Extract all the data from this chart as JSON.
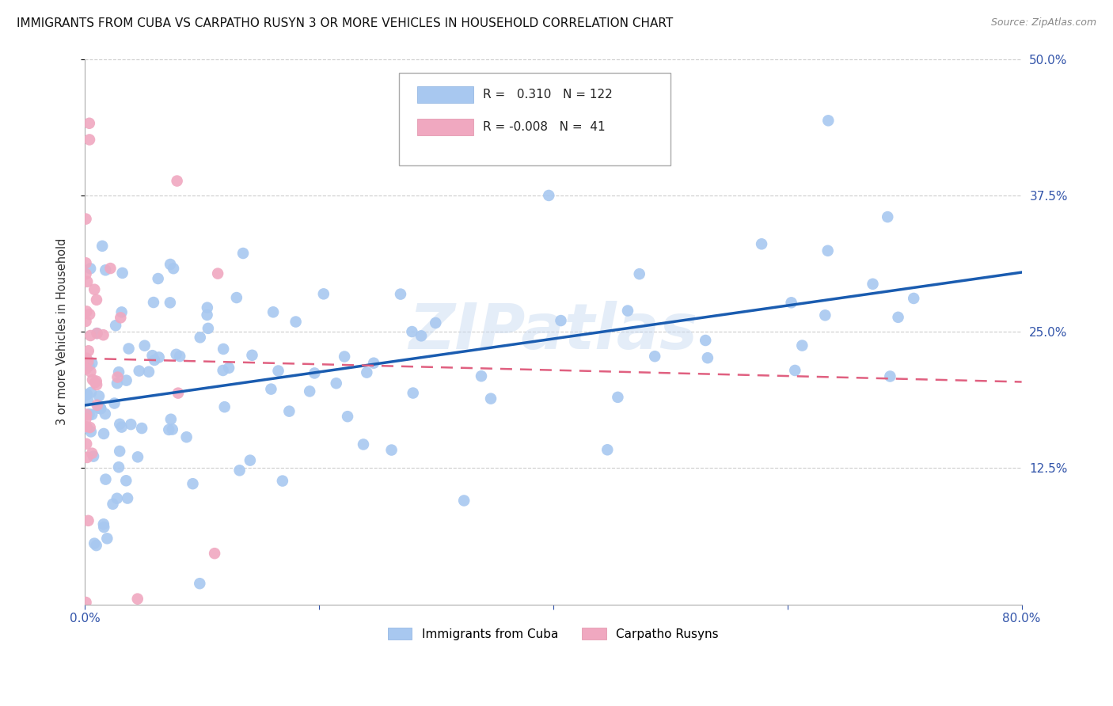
{
  "title": "IMMIGRANTS FROM CUBA VS CARPATHO RUSYN 3 OR MORE VEHICLES IN HOUSEHOLD CORRELATION CHART",
  "source": "Source: ZipAtlas.com",
  "ylabel": "3 or more Vehicles in Household",
  "xlim": [
    0.0,
    0.8
  ],
  "ylim": [
    0.0,
    0.5
  ],
  "cuba_color": "#a8c8f0",
  "rusyn_color": "#f0a8c0",
  "cuba_line_color": "#1a5cb0",
  "rusyn_line_color": "#e06080",
  "background_color": "#ffffff",
  "watermark": "ZIPatlas",
  "cuba_R": 0.31,
  "cuba_N": 122,
  "rusyn_R": -0.008,
  "rusyn_N": 41,
  "legend_R_cuba": "0.310",
  "legend_N_cuba": "122",
  "legend_R_rusyn": "-0.008",
  "legend_N_rusyn": "41"
}
